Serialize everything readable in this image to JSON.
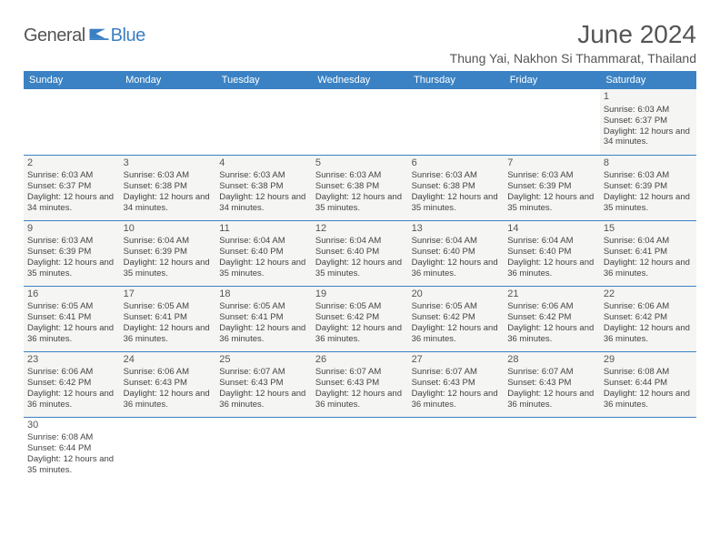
{
  "logo": {
    "text1": "General",
    "text2": "Blue"
  },
  "title": "June 2024",
  "location": "Thung Yai, Nakhon Si Thammarat, Thailand",
  "weekdays": [
    "Sunday",
    "Monday",
    "Tuesday",
    "Wednesday",
    "Thursday",
    "Friday",
    "Saturday"
  ],
  "colors": {
    "header_bg": "#3b82c4",
    "cell_bg": "#f5f5f3",
    "rule": "#3b82c4"
  },
  "first_weekday": 6,
  "days": [
    {
      "n": "1",
      "sr": "Sunrise: 6:03 AM",
      "ss": "Sunset: 6:37 PM",
      "dl": "Daylight: 12 hours and 34 minutes."
    },
    {
      "n": "2",
      "sr": "Sunrise: 6:03 AM",
      "ss": "Sunset: 6:37 PM",
      "dl": "Daylight: 12 hours and 34 minutes."
    },
    {
      "n": "3",
      "sr": "Sunrise: 6:03 AM",
      "ss": "Sunset: 6:38 PM",
      "dl": "Daylight: 12 hours and 34 minutes."
    },
    {
      "n": "4",
      "sr": "Sunrise: 6:03 AM",
      "ss": "Sunset: 6:38 PM",
      "dl": "Daylight: 12 hours and 34 minutes."
    },
    {
      "n": "5",
      "sr": "Sunrise: 6:03 AM",
      "ss": "Sunset: 6:38 PM",
      "dl": "Daylight: 12 hours and 35 minutes."
    },
    {
      "n": "6",
      "sr": "Sunrise: 6:03 AM",
      "ss": "Sunset: 6:38 PM",
      "dl": "Daylight: 12 hours and 35 minutes."
    },
    {
      "n": "7",
      "sr": "Sunrise: 6:03 AM",
      "ss": "Sunset: 6:39 PM",
      "dl": "Daylight: 12 hours and 35 minutes."
    },
    {
      "n": "8",
      "sr": "Sunrise: 6:03 AM",
      "ss": "Sunset: 6:39 PM",
      "dl": "Daylight: 12 hours and 35 minutes."
    },
    {
      "n": "9",
      "sr": "Sunrise: 6:03 AM",
      "ss": "Sunset: 6:39 PM",
      "dl": "Daylight: 12 hours and 35 minutes."
    },
    {
      "n": "10",
      "sr": "Sunrise: 6:04 AM",
      "ss": "Sunset: 6:39 PM",
      "dl": "Daylight: 12 hours and 35 minutes."
    },
    {
      "n": "11",
      "sr": "Sunrise: 6:04 AM",
      "ss": "Sunset: 6:40 PM",
      "dl": "Daylight: 12 hours and 35 minutes."
    },
    {
      "n": "12",
      "sr": "Sunrise: 6:04 AM",
      "ss": "Sunset: 6:40 PM",
      "dl": "Daylight: 12 hours and 35 minutes."
    },
    {
      "n": "13",
      "sr": "Sunrise: 6:04 AM",
      "ss": "Sunset: 6:40 PM",
      "dl": "Daylight: 12 hours and 36 minutes."
    },
    {
      "n": "14",
      "sr": "Sunrise: 6:04 AM",
      "ss": "Sunset: 6:40 PM",
      "dl": "Daylight: 12 hours and 36 minutes."
    },
    {
      "n": "15",
      "sr": "Sunrise: 6:04 AM",
      "ss": "Sunset: 6:41 PM",
      "dl": "Daylight: 12 hours and 36 minutes."
    },
    {
      "n": "16",
      "sr": "Sunrise: 6:05 AM",
      "ss": "Sunset: 6:41 PM",
      "dl": "Daylight: 12 hours and 36 minutes."
    },
    {
      "n": "17",
      "sr": "Sunrise: 6:05 AM",
      "ss": "Sunset: 6:41 PM",
      "dl": "Daylight: 12 hours and 36 minutes."
    },
    {
      "n": "18",
      "sr": "Sunrise: 6:05 AM",
      "ss": "Sunset: 6:41 PM",
      "dl": "Daylight: 12 hours and 36 minutes."
    },
    {
      "n": "19",
      "sr": "Sunrise: 6:05 AM",
      "ss": "Sunset: 6:42 PM",
      "dl": "Daylight: 12 hours and 36 minutes."
    },
    {
      "n": "20",
      "sr": "Sunrise: 6:05 AM",
      "ss": "Sunset: 6:42 PM",
      "dl": "Daylight: 12 hours and 36 minutes."
    },
    {
      "n": "21",
      "sr": "Sunrise: 6:06 AM",
      "ss": "Sunset: 6:42 PM",
      "dl": "Daylight: 12 hours and 36 minutes."
    },
    {
      "n": "22",
      "sr": "Sunrise: 6:06 AM",
      "ss": "Sunset: 6:42 PM",
      "dl": "Daylight: 12 hours and 36 minutes."
    },
    {
      "n": "23",
      "sr": "Sunrise: 6:06 AM",
      "ss": "Sunset: 6:42 PM",
      "dl": "Daylight: 12 hours and 36 minutes."
    },
    {
      "n": "24",
      "sr": "Sunrise: 6:06 AM",
      "ss": "Sunset: 6:43 PM",
      "dl": "Daylight: 12 hours and 36 minutes."
    },
    {
      "n": "25",
      "sr": "Sunrise: 6:07 AM",
      "ss": "Sunset: 6:43 PM",
      "dl": "Daylight: 12 hours and 36 minutes."
    },
    {
      "n": "26",
      "sr": "Sunrise: 6:07 AM",
      "ss": "Sunset: 6:43 PM",
      "dl": "Daylight: 12 hours and 36 minutes."
    },
    {
      "n": "27",
      "sr": "Sunrise: 6:07 AM",
      "ss": "Sunset: 6:43 PM",
      "dl": "Daylight: 12 hours and 36 minutes."
    },
    {
      "n": "28",
      "sr": "Sunrise: 6:07 AM",
      "ss": "Sunset: 6:43 PM",
      "dl": "Daylight: 12 hours and 36 minutes."
    },
    {
      "n": "29",
      "sr": "Sunrise: 6:08 AM",
      "ss": "Sunset: 6:44 PM",
      "dl": "Daylight: 12 hours and 36 minutes."
    },
    {
      "n": "30",
      "sr": "Sunrise: 6:08 AM",
      "ss": "Sunset: 6:44 PM",
      "dl": "Daylight: 12 hours and 35 minutes."
    }
  ]
}
